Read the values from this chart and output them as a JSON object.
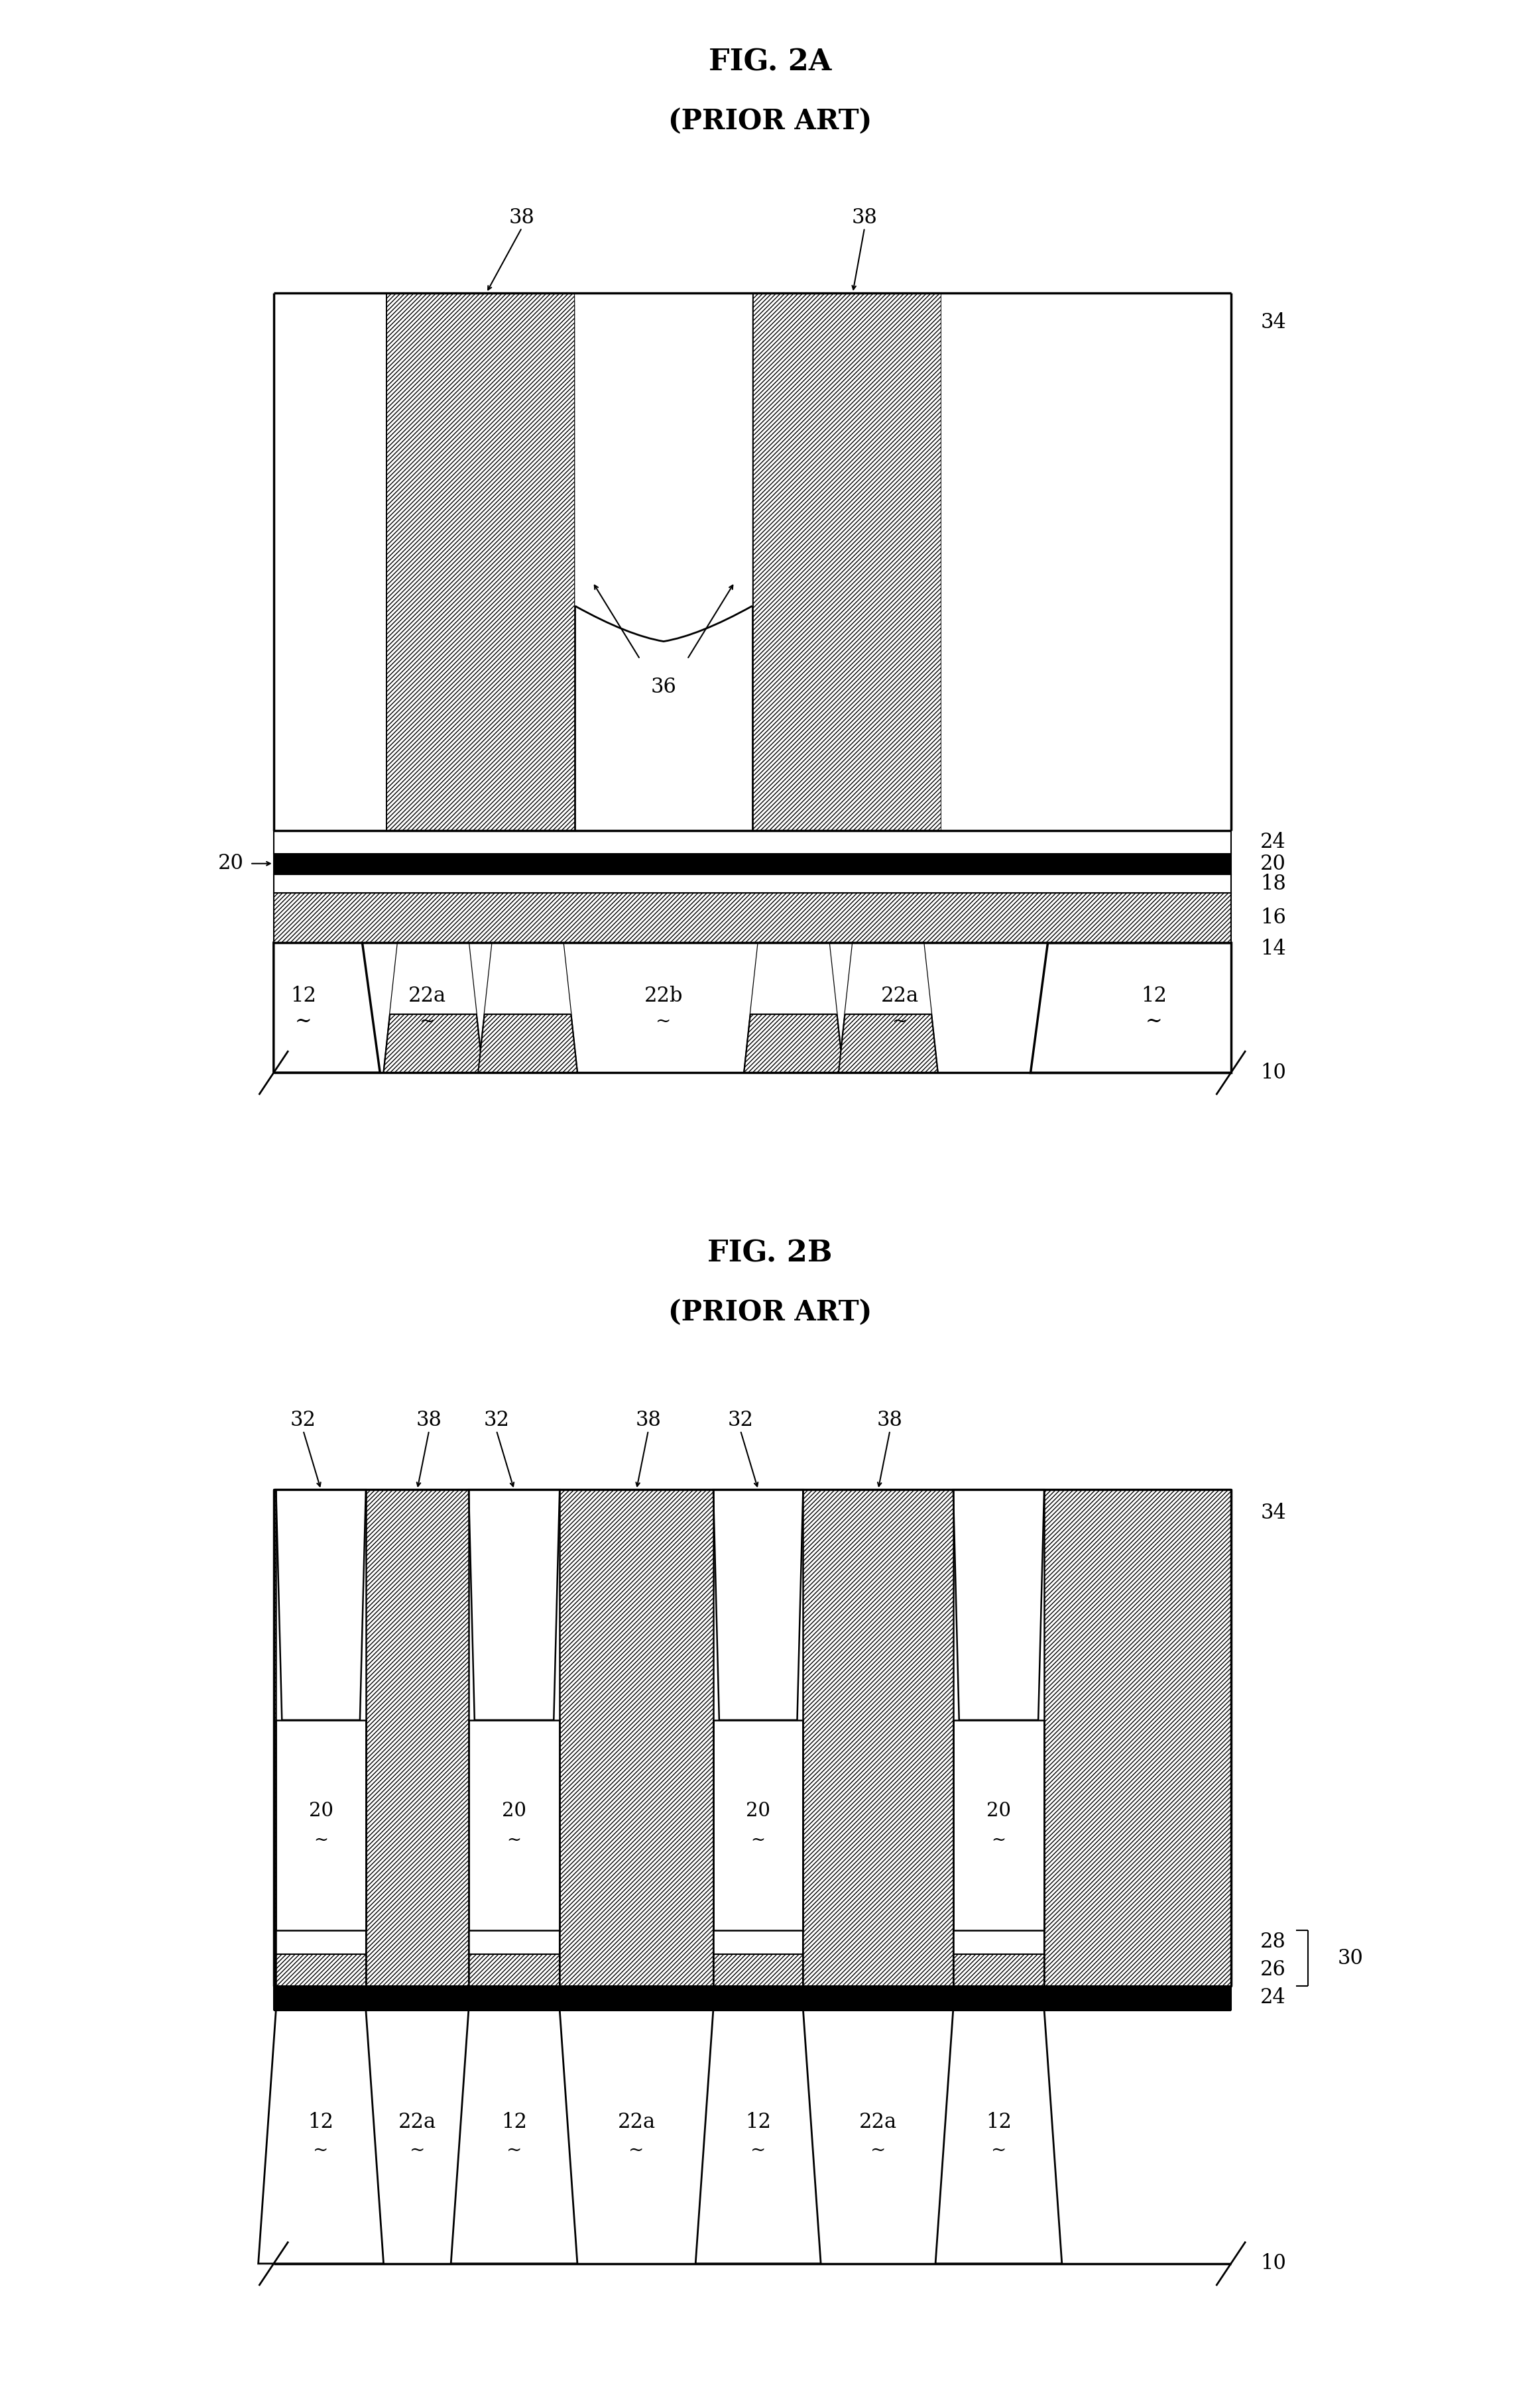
{
  "fig_title_A": "FIG. 2A",
  "fig_subtitle_A": "(PRIOR ART)",
  "fig_title_B": "FIG. 2B",
  "fig_subtitle_B": "(PRIOR ART)",
  "background_color": "#ffffff",
  "line_color": "#000000",
  "hatch_pattern": "////",
  "title_fontsize": 32,
  "ref_fontsize": 22
}
